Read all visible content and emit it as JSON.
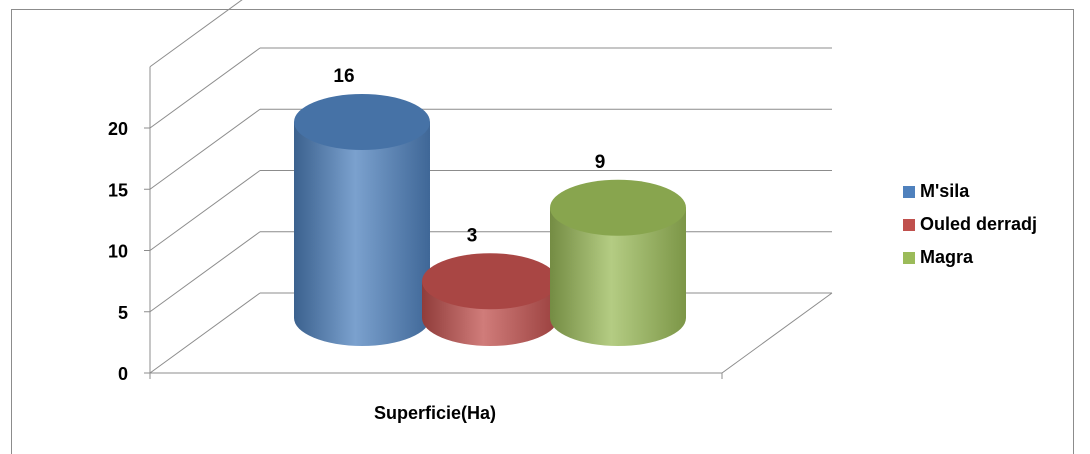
{
  "chart_data": {
    "type": "bar",
    "categories": [
      "Superficie(Ha)"
    ],
    "xlabel": "",
    "ylabel": "",
    "ylim": [
      0,
      20
    ],
    "yticks": [
      "0",
      "5",
      "10",
      "15",
      "20"
    ],
    "grid": true,
    "legend_position": "right",
    "series": [
      {
        "name": "M'sila",
        "values": [
          16
        ],
        "value_label": "16",
        "color": "#4f81bd"
      },
      {
        "name": "Ouled derradj",
        "values": [
          3
        ],
        "value_label": "3",
        "color": "#c0504d"
      },
      {
        "name": "Magra",
        "values": [
          9
        ],
        "value_label": "9",
        "color": "#9bbb59"
      }
    ]
  }
}
